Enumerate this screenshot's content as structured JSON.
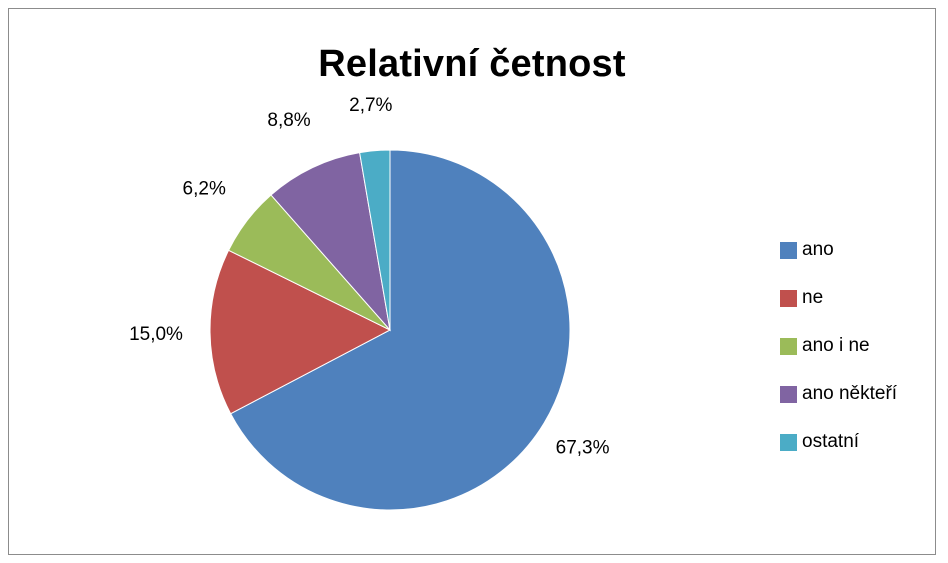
{
  "chart_data": {
    "type": "pie",
    "title": "Relativní četnost",
    "slices": [
      {
        "name": "ano",
        "value": 67.3,
        "label": "67,3%",
        "color": "#4F81BD"
      },
      {
        "name": "ne",
        "value": 15.0,
        "label": "15,0%",
        "color": "#C0504D"
      },
      {
        "name": "ano i ne",
        "value": 6.2,
        "label": "6,2%",
        "color": "#9BBB59"
      },
      {
        "name": "ano někteří",
        "value": 8.8,
        "label": "8,8%",
        "color": "#8064A2"
      },
      {
        "name": "ostatní",
        "value": 2.7,
        "label": "2,7%",
        "color": "#4BACC6"
      }
    ],
    "legend_position": "right"
  }
}
